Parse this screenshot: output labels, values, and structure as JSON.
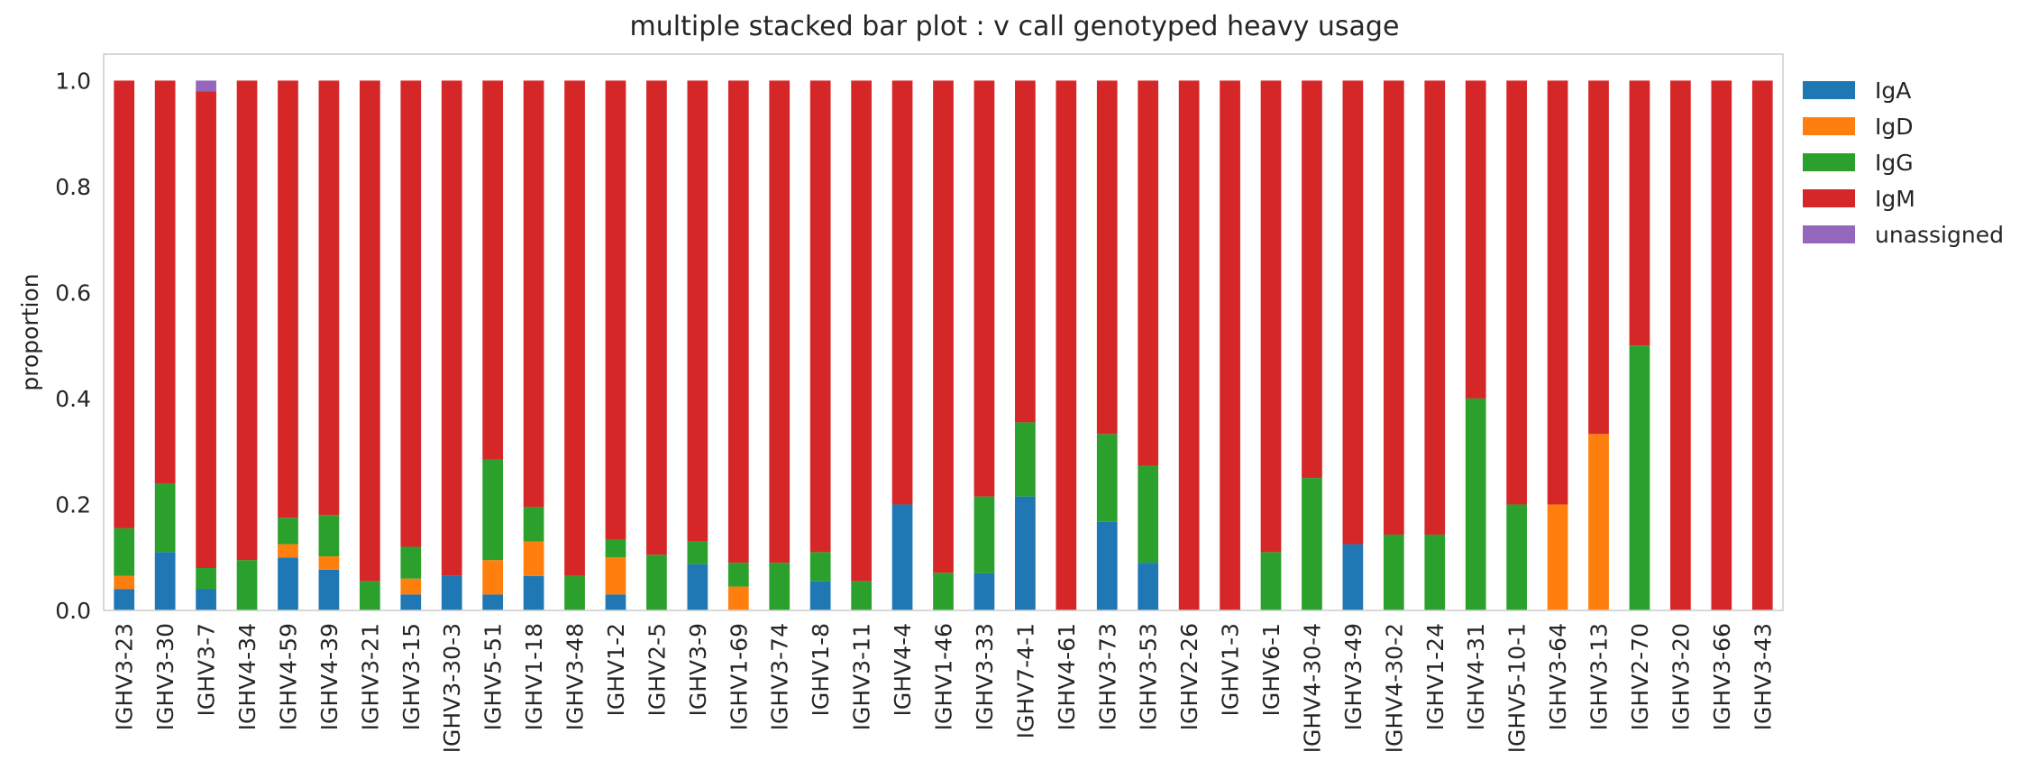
{
  "chart_data": {
    "type": "bar",
    "stacked": true,
    "title": "multiple stacked bar plot : v call genotyped heavy usage",
    "xlabel": "",
    "ylabel": "proportion",
    "ylim": [
      0,
      1.05
    ],
    "yticks": [
      "0.0",
      "0.2",
      "0.4",
      "0.6",
      "0.8",
      "1.0"
    ],
    "grid": false,
    "legend_position": "outside-right",
    "categories": [
      "IGHV3-23",
      "IGHV3-30",
      "IGHV3-7",
      "IGHV4-34",
      "IGHV4-59",
      "IGHV4-39",
      "IGHV3-21",
      "IGHV3-15",
      "IGHV3-30-3",
      "IGHV5-51",
      "IGHV1-18",
      "IGHV3-48",
      "IGHV1-2",
      "IGHV2-5",
      "IGHV3-9",
      "IGHV1-69",
      "IGHV3-74",
      "IGHV1-8",
      "IGHV3-11",
      "IGHV4-4",
      "IGHV1-46",
      "IGHV3-33",
      "IGHV7-4-1",
      "IGHV4-61",
      "IGHV3-73",
      "IGHV3-53",
      "IGHV2-26",
      "IGHV1-3",
      "IGHV6-1",
      "IGHV4-30-4",
      "IGHV3-49",
      "IGHV4-30-2",
      "IGHV1-24",
      "IGHV4-31",
      "IGHV5-10-1",
      "IGHV3-64",
      "IGHV3-13",
      "IGHV2-70",
      "IGHV3-20",
      "IGHV3-66",
      "IGHV3-43"
    ],
    "series": [
      {
        "name": "IgA",
        "color": "#1f77b4",
        "values": [
          0.04,
          0.11,
          0.04,
          0,
          0.1,
          0.077,
          0,
          0.03,
          0.065,
          0.03,
          0.065,
          0,
          0.03,
          0,
          0.087,
          0,
          0,
          0.055,
          0,
          0.2,
          0,
          0.07,
          0.215,
          0,
          0.167,
          0.09,
          0,
          0,
          0,
          0,
          0.125,
          0,
          0,
          0,
          0,
          0,
          0,
          0,
          0,
          0,
          0
        ]
      },
      {
        "name": "IgD",
        "color": "#ff7f0e",
        "values": [
          0.025,
          0,
          0,
          0,
          0.025,
          0.025,
          0,
          0.03,
          0,
          0.065,
          0.065,
          0,
          0.07,
          0,
          0,
          0.045,
          0,
          0,
          0,
          0,
          0,
          0,
          0,
          0,
          0,
          0,
          0,
          0,
          0,
          0,
          0,
          0,
          0,
          0,
          0,
          0.2,
          0.333,
          0,
          0,
          0,
          0
        ]
      },
      {
        "name": "IgG",
        "color": "#2ca02c",
        "values": [
          0.09,
          0.13,
          0.04,
          0.095,
          0.05,
          0.078,
          0.055,
          0.06,
          0,
          0.19,
          0.065,
          0.065,
          0.033,
          0.105,
          0.043,
          0.045,
          0.09,
          0.055,
          0.055,
          0,
          0.071,
          0.145,
          0.14,
          0,
          0.166,
          0.183,
          0,
          0,
          0.11,
          0.25,
          0,
          0.143,
          0.143,
          0.4,
          0.2,
          0,
          0,
          0.5,
          0,
          0,
          0
        ]
      },
      {
        "name": "IgM",
        "color": "#d62728",
        "values": [
          0.845,
          0.76,
          0.9,
          0.905,
          0.825,
          0.82,
          0.945,
          0.88,
          0.935,
          0.715,
          0.805,
          0.935,
          0.867,
          0.895,
          0.87,
          0.91,
          0.91,
          0.89,
          0.945,
          0.8,
          0.929,
          0.785,
          0.645,
          1.0,
          0.667,
          0.727,
          1.0,
          1.0,
          0.89,
          0.75,
          0.875,
          0.857,
          0.857,
          0.6,
          0.8,
          0.8,
          0.667,
          0.5,
          1.0,
          1.0,
          1.0
        ]
      },
      {
        "name": "unassigned",
        "color": "#9467bd",
        "values": [
          0,
          0,
          0.02,
          0,
          0,
          0,
          0,
          0,
          0,
          0,
          0,
          0,
          0,
          0,
          0,
          0,
          0,
          0,
          0,
          0,
          0,
          0,
          0,
          0,
          0,
          0,
          0,
          0,
          0,
          0,
          0,
          0,
          0,
          0,
          0,
          0,
          0,
          0,
          0,
          0,
          0
        ]
      }
    ]
  }
}
